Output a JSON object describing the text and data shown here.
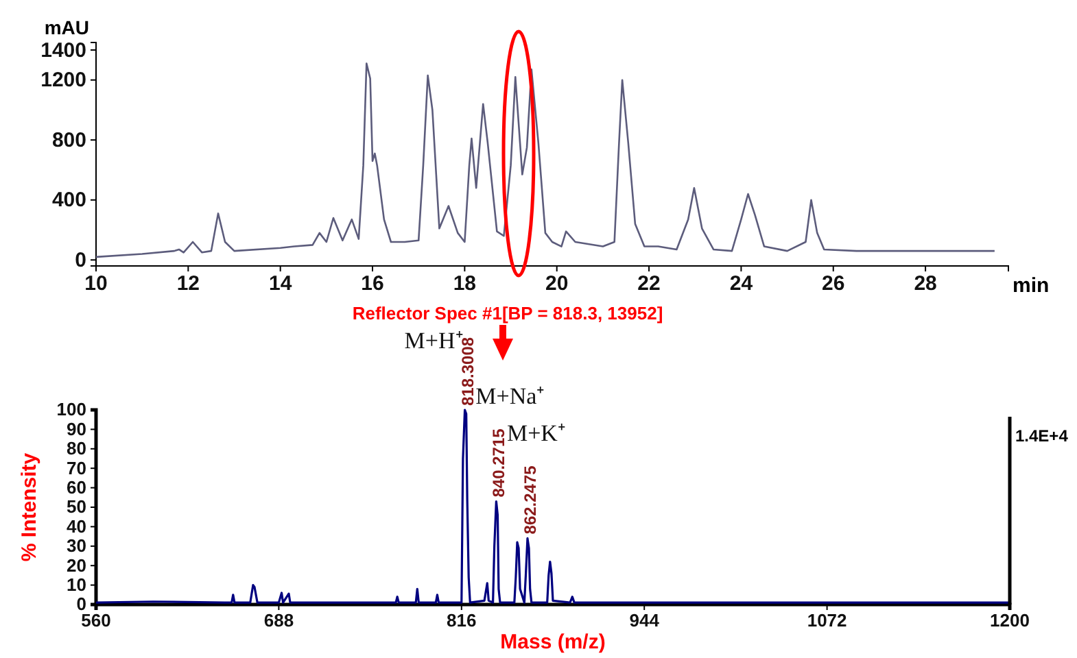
{
  "chart_data": [
    {
      "type": "line",
      "xlabel": "min",
      "ylabel": "mAU",
      "xlim": [
        10,
        29.8
      ],
      "xticks": [
        10,
        12,
        14,
        16,
        18,
        20,
        22,
        24,
        26,
        28
      ],
      "ylim": [
        -40,
        1450
      ],
      "yticks": [
        0,
        400,
        800,
        1200,
        1400
      ],
      "color": "#5c5c7c",
      "x": [
        10,
        11,
        11.7,
        11.8,
        11.9,
        12.1,
        12.3,
        12.5,
        12.65,
        12.8,
        13,
        14,
        14.3,
        14.7,
        14.85,
        15,
        15.15,
        15.35,
        15.55,
        15.7,
        15.8,
        15.87,
        15.95,
        16,
        16.05,
        16.1,
        16.25,
        16.4,
        16.7,
        17,
        17.1,
        17.2,
        17.3,
        17.45,
        17.65,
        17.85,
        18,
        18.1,
        18.15,
        18.25,
        18.4,
        18.5,
        18.7,
        18.85,
        19,
        19.1,
        19.25,
        19.35,
        19.45,
        19.6,
        19.75,
        19.9,
        20.1,
        20.2,
        20.4,
        21,
        21.25,
        21.35,
        21.42,
        21.55,
        21.7,
        21.9,
        22.2,
        22.6,
        22.85,
        22.98,
        23.15,
        23.4,
        23.8,
        24,
        24.15,
        24.3,
        24.5,
        25,
        25.4,
        25.52,
        25.65,
        25.8,
        26.5,
        27,
        28,
        29,
        29.5
      ],
      "values": [
        20,
        40,
        60,
        70,
        50,
        120,
        50,
        60,
        310,
        120,
        60,
        80,
        90,
        100,
        180,
        120,
        280,
        130,
        270,
        140,
        630,
        1310,
        1210,
        660,
        710,
        630,
        270,
        120,
        120,
        130,
        630,
        1230,
        1000,
        210,
        360,
        180,
        120,
        630,
        810,
        480,
        1040,
        780,
        190,
        160,
        630,
        1220,
        570,
        750,
        1270,
        780,
        180,
        120,
        90,
        190,
        120,
        90,
        120,
        780,
        1200,
        780,
        240,
        90,
        90,
        70,
        270,
        480,
        210,
        70,
        60,
        270,
        440,
        300,
        90,
        60,
        120,
        400,
        180,
        70,
        60,
        60,
        60,
        60,
        60
      ]
    },
    {
      "type": "line",
      "title": "Reflector Spec #1[BP = 818.3, 13952]",
      "xlabel": "Mass (m/z)",
      "ylabel": "% Intensity",
      "xlim": [
        560,
        1200
      ],
      "xticks": [
        560,
        688,
        816,
        944,
        1072,
        1200
      ],
      "ylim": [
        0,
        100
      ],
      "yticks": [
        0,
        10,
        20,
        30,
        40,
        50,
        60,
        70,
        80,
        90,
        100
      ],
      "color": "#000080",
      "x": [
        560,
        600,
        650,
        655,
        656,
        657,
        668,
        670,
        671,
        673,
        688,
        690,
        691,
        695,
        696,
        740,
        770,
        771,
        772,
        784,
        785,
        786,
        798,
        799,
        800,
        816,
        817,
        818.3,
        819.3,
        820,
        821,
        822,
        832,
        834,
        835,
        838,
        839,
        840.3,
        841.3,
        842,
        843,
        853,
        854,
        855,
        856,
        857,
        860,
        861,
        862.2,
        863.2,
        864,
        865,
        876,
        877,
        878,
        879,
        880,
        892,
        893.6,
        895,
        950,
        1000,
        1100,
        1200
      ],
      "values": [
        1,
        1.5,
        1,
        1,
        5,
        1,
        1,
        10,
        9,
        1,
        1,
        6,
        1,
        5.6,
        1,
        1,
        1,
        4,
        1,
        1,
        8,
        1,
        1,
        5,
        1,
        1,
        75,
        100,
        98,
        54,
        14,
        1,
        2,
        11,
        2,
        1,
        30,
        53,
        46,
        8,
        1,
        1,
        14,
        32,
        29,
        8,
        1,
        15,
        34,
        29,
        8,
        1,
        1,
        15,
        22,
        16,
        2,
        1,
        4,
        1,
        1,
        1,
        1,
        1
      ],
      "annotations": [
        "M+H⁺",
        {
          "text": "818.3008",
          "x": 818.3,
          "y": 100
        },
        "M+Na⁺",
        {
          "text": "840.2715",
          "x": 840.3,
          "y": 53
        },
        "M+K⁺",
        {
          "text": "862.2475",
          "x": 862.2,
          "y": 34
        },
        "1.4E+4"
      ]
    }
  ]
}
